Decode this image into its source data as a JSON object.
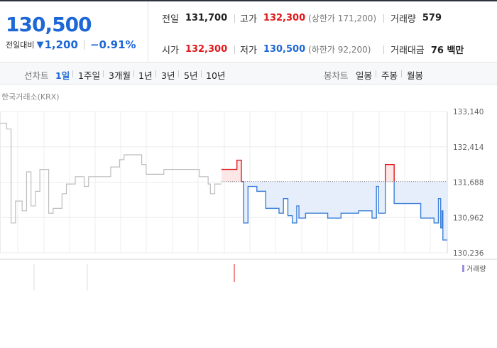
{
  "summary": {
    "current_price": "130,500",
    "change_label": "전일대비",
    "change_icon": "down-triangle-icon",
    "change_value": "1,200",
    "change_percent": "−0.91%",
    "prev_close_label": "전일",
    "prev_close": "131,700",
    "high_label": "고가",
    "high": "132,300",
    "upper_limit": "(상한가 171,200)",
    "volume_label": "거래량",
    "volume": "579",
    "open_label": "시가",
    "open": "132,300",
    "low_label": "저가",
    "low": "130,500",
    "lower_limit": "(하한가 92,200)",
    "trade_value_label": "거래대금",
    "trade_value": "76 백만"
  },
  "period": {
    "line_label": "선차트",
    "line_options": [
      "1일",
      "1주일",
      "3개월",
      "1년",
      "3년",
      "5년",
      "10년"
    ],
    "candle_label": "봉차트",
    "candle_options": [
      "일봉",
      "주봉",
      "월봉"
    ]
  },
  "chart": {
    "exchange": "한국거래소(KRX)",
    "volume_legend": "거래량"
  },
  "chart_data": {
    "type": "line",
    "y_ticks": [
      "133,140",
      "132,414",
      "131,688",
      "130,962",
      "130,236"
    ],
    "ylim": [
      130236,
      133140
    ],
    "prev_close": 131700,
    "colors": {
      "prev_day": "#bdbdbd",
      "today": "#3e80d8",
      "fill": "#e5eefa",
      "up": "#e0191c",
      "up_fill": "#fde6e6"
    },
    "prev_day": [
      [
        0,
        132900
      ],
      [
        1.5,
        132900
      ],
      [
        1.5,
        132780
      ],
      [
        2.5,
        132780
      ],
      [
        2.5,
        130850
      ],
      [
        3.5,
        130850
      ],
      [
        3.5,
        131300
      ],
      [
        5,
        131300
      ],
      [
        5,
        131100
      ],
      [
        6,
        131100
      ],
      [
        6,
        131900
      ],
      [
        7,
        131900
      ],
      [
        7,
        131200
      ],
      [
        8,
        131200
      ],
      [
        8,
        131500
      ],
      [
        9,
        131500
      ],
      [
        9,
        131950
      ],
      [
        11,
        131950
      ],
      [
        11,
        131050
      ],
      [
        12,
        131050
      ],
      [
        12,
        131150
      ],
      [
        14,
        131150
      ],
      [
        14,
        131450
      ],
      [
        15,
        131450
      ],
      [
        15,
        131650
      ],
      [
        17,
        131650
      ],
      [
        17,
        131800
      ],
      [
        19,
        131800
      ],
      [
        19,
        131600
      ],
      [
        20,
        131600
      ],
      [
        20,
        131800
      ],
      [
        25,
        131800
      ],
      [
        25,
        132000
      ],
      [
        27,
        132000
      ],
      [
        27,
        132150
      ],
      [
        28,
        132150
      ],
      [
        28,
        132250
      ],
      [
        32,
        132250
      ],
      [
        32,
        132050
      ],
      [
        33,
        132050
      ],
      [
        33,
        131850
      ],
      [
        37,
        131850
      ],
      [
        37,
        131950
      ],
      [
        45,
        131950
      ],
      [
        45,
        131800
      ],
      [
        47,
        131800
      ],
      [
        47,
        131650
      ],
      [
        47.5,
        131650
      ],
      [
        47.5,
        131450
      ],
      [
        48.5,
        131450
      ],
      [
        48.5,
        131650
      ],
      [
        50,
        131650
      ]
    ],
    "today": [
      [
        50,
        131950
      ],
      [
        53.5,
        131950
      ],
      [
        53.5,
        132140
      ],
      [
        54.5,
        132140
      ],
      [
        54.5,
        131700
      ],
      [
        55,
        131700
      ],
      [
        55,
        130850
      ],
      [
        56,
        130850
      ],
      [
        56,
        131600
      ],
      [
        58,
        131600
      ],
      [
        58,
        131500
      ],
      [
        60,
        131500
      ],
      [
        60,
        131150
      ],
      [
        63,
        131150
      ],
      [
        63,
        131050
      ],
      [
        64,
        131050
      ],
      [
        64,
        131350
      ],
      [
        65,
        131350
      ],
      [
        65,
        131000
      ],
      [
        66,
        131000
      ],
      [
        66,
        130850
      ],
      [
        67,
        130850
      ],
      [
        67,
        131200
      ],
      [
        67.5,
        131200
      ],
      [
        67.5,
        130950
      ],
      [
        69,
        130950
      ],
      [
        69,
        131050
      ],
      [
        74,
        131050
      ],
      [
        74,
        130950
      ],
      [
        77,
        130950
      ],
      [
        77,
        131050
      ],
      [
        81,
        131050
      ],
      [
        81,
        131100
      ],
      [
        84,
        131100
      ],
      [
        84,
        130950
      ],
      [
        85,
        130950
      ],
      [
        85,
        131600
      ],
      [
        85.5,
        131600
      ],
      [
        85.5,
        131050
      ],
      [
        87,
        131050
      ],
      [
        87,
        132050
      ],
      [
        89,
        132050
      ],
      [
        89,
        131250
      ],
      [
        95,
        131250
      ],
      [
        95,
        130950
      ],
      [
        98,
        130950
      ],
      [
        98,
        130850
      ],
      [
        99,
        130850
      ],
      [
        99,
        131350
      ],
      [
        99.5,
        131350
      ],
      [
        99.5,
        130750
      ],
      [
        99.8,
        130750
      ],
      [
        99.8,
        131100
      ],
      [
        100,
        131100
      ],
      [
        100,
        130500
      ],
      [
        101,
        130500
      ]
    ]
  }
}
